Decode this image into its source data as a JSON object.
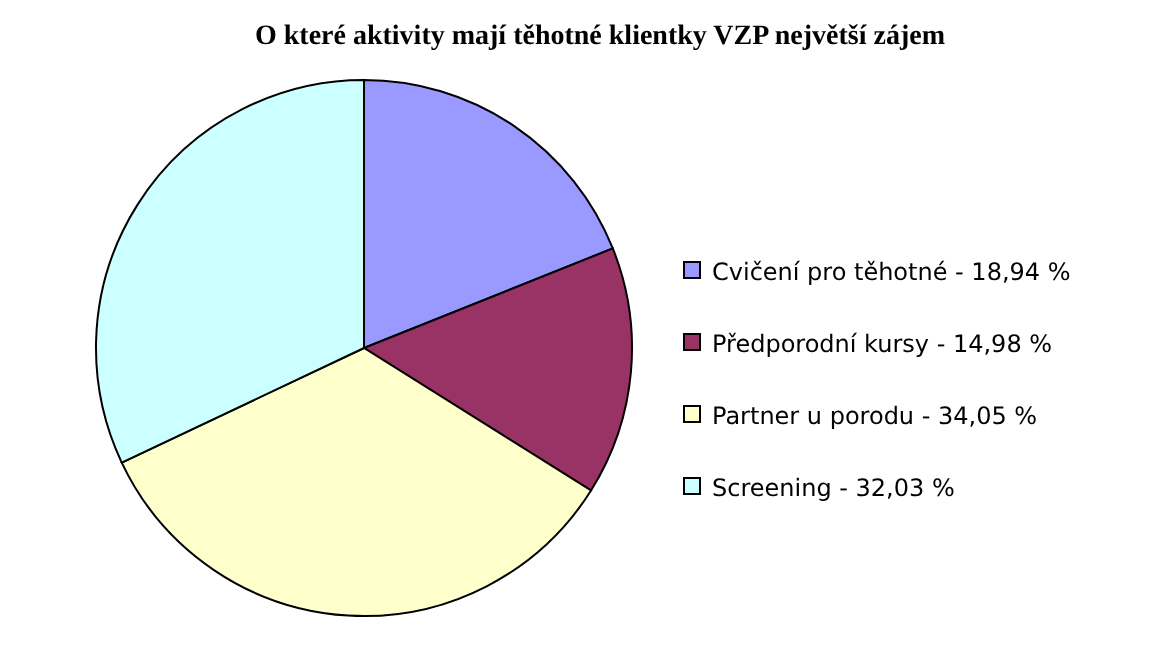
{
  "chart_data": {
    "type": "pie",
    "title": "O které aktivity mají těhotné klientky VZP největší zájem",
    "categories": [
      "Cvičení pro těhotné - 18,94 %",
      "Předporodní kursy - 14,98 %",
      "Partner u porodu - 34,05 %",
      "Screening - 32,03 %"
    ],
    "values": [
      18.94,
      14.98,
      34.05,
      32.03
    ],
    "colors": [
      "#9999ff",
      "#993366",
      "#ffffcc",
      "#ccffff"
    ],
    "legend": "right"
  }
}
